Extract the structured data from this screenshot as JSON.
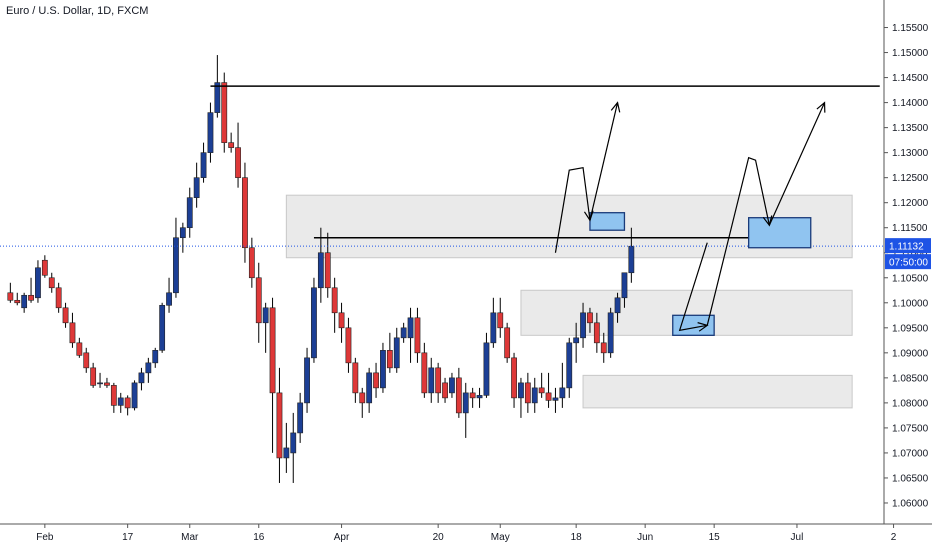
{
  "title": "Euro / U.S. Dollar, 1D, FXCM",
  "price_badge": {
    "price": "1.11132",
    "timer": "07:50:00",
    "color": "#1e53e5"
  },
  "colors": {
    "up": "#1c3f95",
    "down": "#de3838",
    "zone_fill": "#d9d9d9",
    "target_box": "#90c4f0",
    "target_border": "#1a3b7a"
  },
  "chart_data": {
    "type": "candlestick",
    "ylim": [
      1.0558,
      1.1605
    ],
    "yticks": [
      "1.15500",
      "1.15000",
      "1.14500",
      "1.14000",
      "1.13500",
      "1.13000",
      "1.12500",
      "1.12000",
      "1.11500",
      "1.11000",
      "1.10500",
      "1.10000",
      "1.09500",
      "1.09000",
      "1.08500",
      "1.08000",
      "1.07500",
      "1.07000",
      "1.06500",
      "1.06000"
    ],
    "xticks": [
      {
        "label": "Feb",
        "day": 5
      },
      {
        "label": "17",
        "day": 17
      },
      {
        "label": "Mar",
        "day": 26
      },
      {
        "label": "16",
        "day": 36
      },
      {
        "label": "Apr",
        "day": 48
      },
      {
        "label": "20",
        "day": 62
      },
      {
        "label": "May",
        "day": 71
      },
      {
        "label": "18",
        "day": 82
      },
      {
        "label": "Jun",
        "day": 92
      },
      {
        "label": "15",
        "day": 102
      },
      {
        "label": "Jul",
        "day": 114
      },
      {
        "label": "2",
        "day": 128
      }
    ],
    "candles": [
      [
        1.102,
        1.104,
        1.1,
        1.1005
      ],
      [
        1.1005,
        1.102,
        1.0995,
        1.1
      ],
      [
        1.099,
        1.102,
        1.098,
        1.1015
      ],
      [
        1.1015,
        1.105,
        1.1,
        1.1005
      ],
      [
        1.101,
        1.1085,
        1.1,
        1.107
      ],
      [
        1.1085,
        1.1095,
        1.105,
        1.1055
      ],
      [
        1.105,
        1.106,
        1.102,
        1.103
      ],
      [
        1.103,
        1.104,
        1.098,
        1.099
      ],
      [
        1.099,
        1.1,
        1.095,
        1.096
      ],
      [
        1.096,
        1.098,
        1.091,
        1.092
      ],
      [
        1.092,
        1.093,
        1.089,
        1.0895
      ],
      [
        1.09,
        1.091,
        1.086,
        1.087
      ],
      [
        1.087,
        1.088,
        1.083,
        1.0835
      ],
      [
        1.084,
        1.086,
        1.083,
        1.084
      ],
      [
        1.084,
        1.085,
        1.083,
        1.0835
      ],
      [
        1.0835,
        1.084,
        1.078,
        1.0795
      ],
      [
        1.0795,
        1.082,
        1.078,
        1.081
      ],
      [
        1.081,
        1.0815,
        1.0775,
        1.079
      ],
      [
        1.079,
        1.0845,
        1.0785,
        1.084
      ],
      [
        1.084,
        1.087,
        1.0825,
        1.086
      ],
      [
        1.086,
        1.089,
        1.084,
        1.088
      ],
      [
        1.088,
        1.091,
        1.087,
        1.0905
      ],
      [
        1.0905,
        1.1,
        1.09,
        1.0995
      ],
      [
        1.0995,
        1.105,
        1.098,
        1.102
      ],
      [
        1.102,
        1.117,
        1.101,
        1.113
      ],
      [
        1.113,
        1.116,
        1.11,
        1.115
      ],
      [
        1.115,
        1.123,
        1.113,
        1.121
      ],
      [
        1.121,
        1.128,
        1.119,
        1.125
      ],
      [
        1.125,
        1.132,
        1.124,
        1.13
      ],
      [
        1.13,
        1.14,
        1.128,
        1.138
      ],
      [
        1.138,
        1.1495,
        1.137,
        1.144
      ],
      [
        1.144,
        1.146,
        1.13,
        1.132
      ],
      [
        1.132,
        1.134,
        1.13,
        1.131
      ],
      [
        1.131,
        1.136,
        1.123,
        1.125
      ],
      [
        1.125,
        1.128,
        1.108,
        1.111
      ],
      [
        1.111,
        1.113,
        1.103,
        1.105
      ],
      [
        1.105,
        1.108,
        1.092,
        1.096
      ],
      [
        1.096,
        1.1,
        1.09,
        1.099
      ],
      [
        1.099,
        1.101,
        1.07,
        1.082
      ],
      [
        1.082,
        1.087,
        1.064,
        1.069
      ],
      [
        1.069,
        1.076,
        1.066,
        1.071
      ],
      [
        1.07,
        1.078,
        1.064,
        1.074
      ],
      [
        1.074,
        1.082,
        1.072,
        1.08
      ],
      [
        1.08,
        1.091,
        1.078,
        1.089
      ],
      [
        1.089,
        1.105,
        1.088,
        1.103
      ],
      [
        1.103,
        1.115,
        1.1,
        1.11
      ],
      [
        1.11,
        1.114,
        1.101,
        1.103
      ],
      [
        1.103,
        1.105,
        1.094,
        1.098
      ],
      [
        1.098,
        1.1,
        1.092,
        1.095
      ],
      [
        1.095,
        1.097,
        1.086,
        1.088
      ],
      [
        1.088,
        1.089,
        1.08,
        1.082
      ],
      [
        1.082,
        1.083,
        1.077,
        1.08
      ],
      [
        1.08,
        1.087,
        1.078,
        1.086
      ],
      [
        1.086,
        1.088,
        1.081,
        1.083
      ],
      [
        1.083,
        1.092,
        1.082,
        1.0905
      ],
      [
        1.0905,
        1.094,
        1.086,
        1.087
      ],
      [
        1.087,
        1.095,
        1.086,
        1.093
      ],
      [
        1.093,
        1.096,
        1.092,
        1.095
      ],
      [
        1.093,
        1.099,
        1.088,
        1.097
      ],
      [
        1.097,
        1.099,
        1.088,
        1.09
      ],
      [
        1.09,
        1.092,
        1.081,
        1.082
      ],
      [
        1.082,
        1.089,
        1.08,
        1.087
      ],
      [
        1.087,
        1.088,
        1.08,
        1.082
      ],
      [
        1.084,
        1.085,
        1.08,
        1.081
      ],
      [
        1.082,
        1.086,
        1.081,
        1.085
      ],
      [
        1.085,
        1.087,
        1.077,
        1.078
      ],
      [
        1.078,
        1.084,
        1.073,
        1.082
      ],
      [
        1.082,
        1.083,
        1.079,
        1.081
      ],
      [
        1.081,
        1.083,
        1.079,
        1.0815
      ],
      [
        1.0815,
        1.094,
        1.081,
        1.092
      ],
      [
        1.092,
        1.101,
        1.091,
        1.098
      ],
      [
        1.098,
        1.101,
        1.093,
        1.095
      ],
      [
        1.095,
        1.096,
        1.088,
        1.089
      ],
      [
        1.089,
        1.09,
        1.079,
        1.081
      ],
      [
        1.081,
        1.085,
        1.077,
        1.084
      ],
      [
        1.084,
        1.086,
        1.078,
        1.08
      ],
      [
        1.08,
        1.085,
        1.078,
        1.083
      ],
      [
        1.083,
        1.086,
        1.081,
        1.082
      ],
      [
        1.082,
        1.086,
        1.079,
        1.0805
      ],
      [
        1.0805,
        1.083,
        1.078,
        1.081
      ],
      [
        1.081,
        1.088,
        1.079,
        1.083
      ],
      [
        1.083,
        1.093,
        1.081,
        1.092
      ],
      [
        1.092,
        1.096,
        1.088,
        1.093
      ],
      [
        1.093,
        1.1,
        1.091,
        1.098
      ],
      [
        1.098,
        1.099,
        1.094,
        1.096
      ],
      [
        1.096,
        1.098,
        1.09,
        1.092
      ],
      [
        1.092,
        1.094,
        1.088,
        1.09
      ],
      [
        1.09,
        1.099,
        1.089,
        1.098
      ],
      [
        1.098,
        1.102,
        1.096,
        1.101
      ],
      [
        1.101,
        1.106,
        1.099,
        1.106
      ],
      [
        1.106,
        1.115,
        1.104,
        1.1113
      ]
    ],
    "zones": [
      {
        "from_day": 40,
        "to_day": 122,
        "high": 1.1215,
        "low": 1.109
      },
      {
        "from_day": 74,
        "to_day": 122,
        "high": 1.1025,
        "low": 1.0935
      },
      {
        "from_day": 83,
        "to_day": 122,
        "high": 1.0855,
        "low": 1.079
      }
    ],
    "resistance_lines": [
      {
        "from_day": 29,
        "to_day": 126,
        "price": 1.1433
      },
      {
        "from_day": 44,
        "to_day": 111,
        "price": 1.113
      }
    ],
    "current_price": 1.11132,
    "target_boxes": [
      {
        "from_day": 84,
        "to_day": 89,
        "high": 1.118,
        "low": 1.1145
      },
      {
        "from_day": 96,
        "to_day": 102,
        "high": 1.0975,
        "low": 1.0935
      },
      {
        "from_day": 107,
        "to_day": 116,
        "high": 1.117,
        "low": 1.111
      }
    ],
    "projection_paths": [
      [
        [
          79,
          1.11
        ],
        [
          81,
          1.1265
        ],
        [
          83,
          1.127
        ],
        [
          84,
          1.1165
        ]
      ],
      [
        [
          84,
          1.1165
        ],
        [
          88,
          1.14
        ]
      ],
      [
        [
          101,
          1.112
        ],
        [
          97,
          1.0945
        ],
        [
          101,
          1.0955
        ]
      ],
      [
        [
          101,
          1.0955
        ],
        [
          107,
          1.129
        ],
        [
          108,
          1.1285
        ],
        [
          110,
          1.1155
        ]
      ],
      [
        [
          110,
          1.1155
        ],
        [
          118,
          1.14
        ]
      ]
    ]
  }
}
